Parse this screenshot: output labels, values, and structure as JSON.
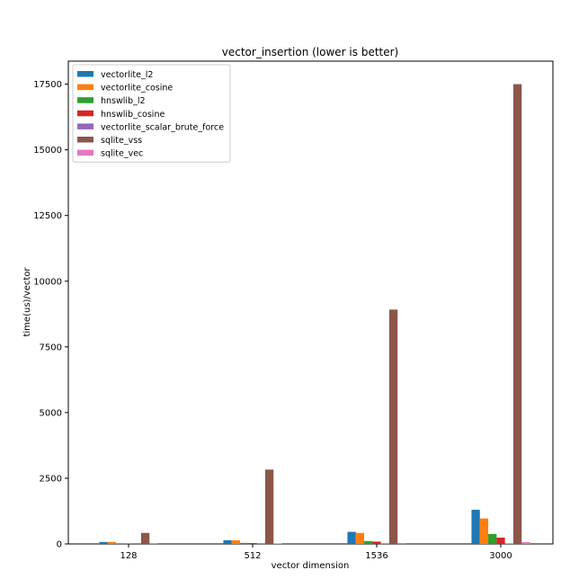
{
  "chart_data": {
    "type": "bar",
    "title": "vector_insertion (lower is better)",
    "xlabel": "vector dimension",
    "ylabel": "time(us)/vector",
    "categories": [
      "128",
      "512",
      "1536",
      "3000"
    ],
    "ylim": [
      0,
      18375
    ],
    "yticks": [
      0,
      2500,
      5000,
      7500,
      10000,
      12500,
      15000,
      17500
    ],
    "grid": false,
    "legend_position": "top-left",
    "series": [
      {
        "name": "vectorlite_l2",
        "color": "#1f77b4",
        "values": [
          75,
          140,
          460,
          1300
        ]
      },
      {
        "name": "vectorlite_cosine",
        "color": "#ff7f0e",
        "values": [
          75,
          140,
          420,
          970
        ]
      },
      {
        "name": "hnswlib_l2",
        "color": "#2ca02c",
        "values": [
          25,
          40,
          110,
          380
        ]
      },
      {
        "name": "hnswlib_cosine",
        "color": "#d62728",
        "values": [
          20,
          35,
          90,
          240
        ]
      },
      {
        "name": "vectorlite_scalar_brute_force",
        "color": "#9467bd",
        "values": [
          5,
          8,
          12,
          15
        ]
      },
      {
        "name": "sqlite_vss",
        "color": "#8c564b",
        "values": [
          420,
          2830,
          8920,
          17500
        ]
      },
      {
        "name": "sqlite_vec",
        "color": "#e377c2",
        "values": [
          10,
          20,
          35,
          70
        ]
      }
    ]
  }
}
